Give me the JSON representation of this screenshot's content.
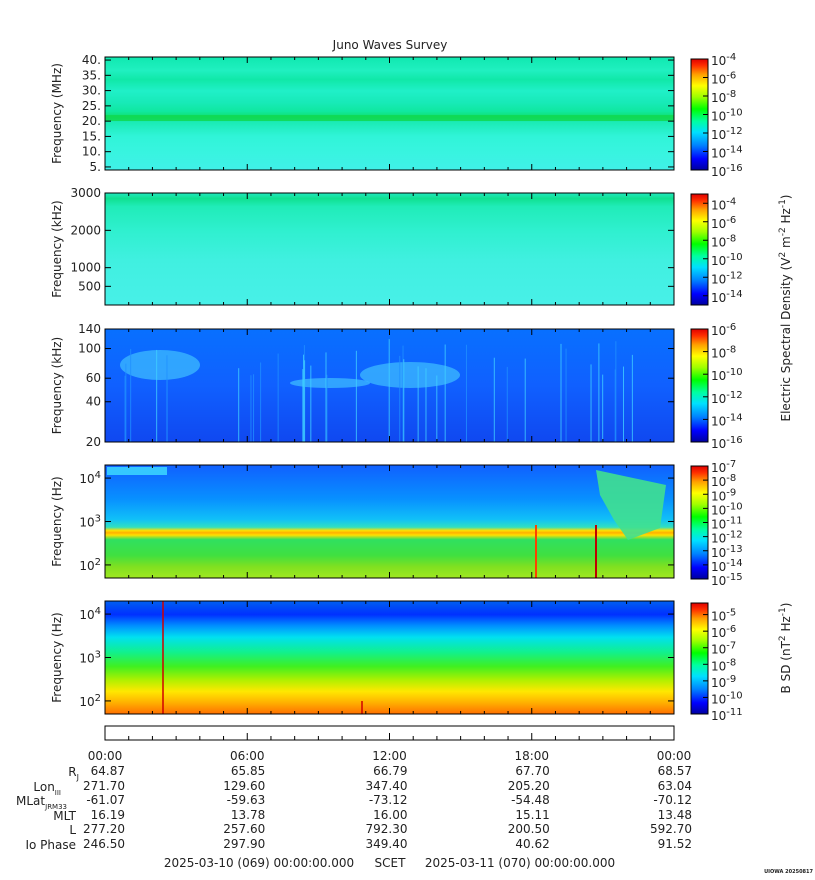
{
  "title": "Juno Waves Survey",
  "footer": {
    "start": "2025-03-10 (069) 00:00:00.000",
    "mid": "SCET",
    "end": "2025-03-11 (070) 00:00:00.000",
    "stamp": "UIOWA 20250817"
  },
  "colors": {
    "spectral": [
      "#0000a0",
      "#0000ff",
      "#0080ff",
      "#00e0ff",
      "#00ffa0",
      "#00ff00",
      "#a0ff00",
      "#ffff00",
      "#ffa000",
      "#ff3000",
      "#e00000"
    ]
  },
  "chart_data": [
    {
      "type": "heatmap",
      "name": "panel-1",
      "ylabel": "Frequency (MHz)",
      "ylim": [
        4,
        41
      ],
      "yscale": "linear",
      "yticks": [
        "40.",
        "35.",
        "30.",
        "25.",
        "20.",
        "15.",
        "10.",
        "5."
      ],
      "ytick_values": [
        40,
        35,
        30,
        25,
        20,
        15,
        10,
        5
      ],
      "colorbar": {
        "min_exp": -16,
        "max_exp": -4,
        "labels": [
          "10^-4",
          "10^-6",
          "10^-8",
          "10^-10",
          "10^-12",
          "10^-14",
          "10^-16"
        ],
        "label_exps": [
          -4,
          -6,
          -8,
          -10,
          -12,
          -14,
          -16
        ]
      }
    },
    {
      "type": "heatmap",
      "name": "panel-2",
      "ylabel": "Frequency (kHz)",
      "ylim": [
        0,
        3000
      ],
      "yscale": "linear",
      "yticks": [
        "3000",
        "2000",
        "1000",
        "500"
      ],
      "ytick_values": [
        3000,
        2000,
        1000,
        500
      ],
      "colorbar": {
        "min_exp": -15,
        "max_exp": -3,
        "labels": [
          "10^-4",
          "10^-6",
          "10^-8",
          "10^-10",
          "10^-12",
          "10^-14"
        ],
        "label_exps": [
          -4,
          -6,
          -8,
          -10,
          -12,
          -14
        ]
      }
    },
    {
      "type": "heatmap",
      "name": "panel-3",
      "ylabel": "Frequency (kHz)",
      "ylim": [
        20,
        140
      ],
      "yscale": "log",
      "yticks": [
        "140",
        "100",
        "60",
        "40",
        "20"
      ],
      "ytick_values": [
        140,
        100,
        60,
        40,
        20
      ],
      "colorbar": {
        "min_exp": -16,
        "max_exp": -6,
        "labels": [
          "10^-6",
          "10^-8",
          "10^-10",
          "10^-12",
          "10^-14",
          "10^-16"
        ],
        "label_exps": [
          -6,
          -8,
          -10,
          -12,
          -14,
          -16
        ]
      }
    },
    {
      "type": "heatmap",
      "name": "panel-4",
      "ylabel": "Frequency (Hz)",
      "ylim": [
        50,
        20000
      ],
      "yscale": "log",
      "yticks": [
        "10^4",
        "10^3",
        "10^2"
      ],
      "ytick_values": [
        10000,
        1000,
        100
      ],
      "colorbar": {
        "min_exp": -15,
        "max_exp": -7,
        "labels": [
          "10^-7",
          "10^-8",
          "10^-9",
          "10^-10",
          "10^-11",
          "10^-12",
          "10^-13",
          "10^-14",
          "10^-15"
        ],
        "label_exps": [
          -7,
          -8,
          -9,
          -10,
          -11,
          -12,
          -13,
          -14,
          -15
        ]
      }
    },
    {
      "type": "heatmap",
      "name": "panel-5",
      "ylabel": "Frequency (Hz)",
      "ylim": [
        50,
        20000
      ],
      "yscale": "log",
      "yticks": [
        "10^4",
        "10^3",
        "10^2"
      ],
      "ytick_values": [
        10000,
        1000,
        100
      ],
      "colorbar": {
        "min_exp": -11,
        "max_exp": -4.3,
        "labels": [
          "10^-5",
          "10^-6",
          "10^-7",
          "10^-8",
          "10^-9",
          "10^-10",
          "10^-11"
        ],
        "label_exps": [
          -5,
          -6,
          -7,
          -8,
          -9,
          -10,
          -11
        ]
      }
    }
  ],
  "side_labels": {
    "electric": "Electric Spectral Density (V^2 m^-2 Hz^-1)",
    "magnetic": "B SD (nT^2 Hz^-1)"
  },
  "time_axis": {
    "ticks": [
      "00:00",
      "06:00",
      "12:00",
      "18:00",
      "00:00"
    ],
    "hours": [
      0,
      6,
      12,
      18,
      24
    ]
  },
  "ephemeris": [
    {
      "label": "RJ",
      "values": [
        "64.87",
        "65.85",
        "66.79",
        "67.70",
        "68.57"
      ]
    },
    {
      "label": "LonIII",
      "values": [
        "271.70",
        "129.60",
        "347.40",
        "205.20",
        "63.04"
      ]
    },
    {
      "label": "MLatJRM33",
      "values": [
        "-61.07",
        "-59.63",
        "-73.12",
        "-54.48",
        "-70.12"
      ]
    },
    {
      "label": "MLT",
      "values": [
        "16.19",
        "13.78",
        "16.00",
        "15.11",
        "13.48"
      ]
    },
    {
      "label": "L",
      "values": [
        "277.20",
        "257.60",
        "792.30",
        "200.50",
        "592.70"
      ]
    },
    {
      "label": "Io Phase",
      "values": [
        "246.50",
        "297.90",
        "349.40",
        "40.62",
        "91.52"
      ]
    }
  ]
}
